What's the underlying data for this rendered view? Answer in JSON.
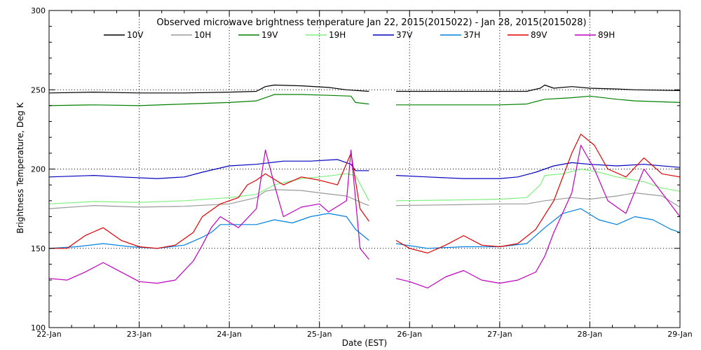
{
  "chart_data": {
    "type": "line",
    "title": "Observed microwave brightness temperature Jan 22, 2015(2015022) - Jan 28, 2015(2015028)",
    "xlabel": "Date (EST)",
    "ylabel": "Brightness Temperature, Deg K",
    "ylim": [
      100,
      300
    ],
    "xlim": [
      0,
      7
    ],
    "yticks": [
      100,
      150,
      200,
      250,
      300
    ],
    "xtick_labels": [
      "22-Jan",
      "23-Jan",
      "24-Jan",
      "25-Jan",
      "26-Jan",
      "27-Jan",
      "28-Jan",
      "29-Jan"
    ],
    "grid": "dotted",
    "gap": [
      3.55,
      3.85
    ],
    "series": [
      {
        "name": "10V",
        "color": "#000000",
        "points": [
          [
            0,
            248
          ],
          [
            0.5,
            248.5
          ],
          [
            1,
            248
          ],
          [
            1.5,
            248
          ],
          [
            2,
            248.5
          ],
          [
            2.3,
            249
          ],
          [
            2.4,
            252
          ],
          [
            2.5,
            253
          ],
          [
            2.8,
            252.5
          ],
          [
            3.1,
            251.5
          ],
          [
            3.3,
            250
          ],
          [
            3.55,
            249
          ],
          [
            3.85,
            249
          ],
          [
            4.5,
            249
          ],
          [
            5,
            249
          ],
          [
            5.3,
            249
          ],
          [
            5.45,
            251
          ],
          [
            5.5,
            253
          ],
          [
            5.6,
            251
          ],
          [
            5.8,
            252
          ],
          [
            6,
            251
          ],
          [
            6.3,
            250.5
          ],
          [
            6.5,
            250
          ],
          [
            7,
            249.5
          ]
        ]
      },
      {
        "name": "10H",
        "color": "#9a9a9a",
        "points": [
          [
            0,
            175
          ],
          [
            0.5,
            177
          ],
          [
            1,
            176
          ],
          [
            1.5,
            176.5
          ],
          [
            2,
            178
          ],
          [
            2.3,
            182
          ],
          [
            2.4,
            186
          ],
          [
            2.5,
            187
          ],
          [
            2.8,
            186.5
          ],
          [
            3,
            185
          ],
          [
            3.3,
            183
          ],
          [
            3.5,
            178
          ],
          [
            3.55,
            177
          ],
          [
            3.85,
            177
          ],
          [
            4.5,
            177.5
          ],
          [
            5,
            178
          ],
          [
            5.3,
            178
          ],
          [
            5.5,
            180
          ],
          [
            5.8,
            182
          ],
          [
            6,
            181
          ],
          [
            6.3,
            183
          ],
          [
            6.5,
            185
          ],
          [
            6.8,
            183
          ],
          [
            7,
            176
          ]
        ]
      },
      {
        "name": "19V",
        "color": "#008000",
        "points": [
          [
            0,
            240
          ],
          [
            0.5,
            240.5
          ],
          [
            1,
            240
          ],
          [
            1.5,
            241
          ],
          [
            2,
            242
          ],
          [
            2.3,
            243
          ],
          [
            2.4,
            245
          ],
          [
            2.5,
            247
          ],
          [
            2.8,
            247
          ],
          [
            3.1,
            246.5
          ],
          [
            3.35,
            246
          ],
          [
            3.4,
            242
          ],
          [
            3.55,
            241
          ],
          [
            3.85,
            240.5
          ],
          [
            4.5,
            240.5
          ],
          [
            5,
            240.5
          ],
          [
            5.3,
            241
          ],
          [
            5.5,
            244
          ],
          [
            5.8,
            245
          ],
          [
            6,
            246
          ],
          [
            6.3,
            244
          ],
          [
            6.5,
            243
          ],
          [
            7,
            242
          ]
        ]
      },
      {
        "name": "19H",
        "color": "#7fef7f",
        "points": [
          [
            0,
            178
          ],
          [
            0.5,
            179.5
          ],
          [
            1,
            179
          ],
          [
            1.5,
            180
          ],
          [
            2,
            182
          ],
          [
            2.3,
            184
          ],
          [
            2.5,
            190
          ],
          [
            2.8,
            194
          ],
          [
            3,
            195
          ],
          [
            3.3,
            197
          ],
          [
            3.4,
            196
          ],
          [
            3.55,
            180
          ],
          [
            3.85,
            180
          ],
          [
            4.5,
            180.5
          ],
          [
            5,
            181
          ],
          [
            5.3,
            182
          ],
          [
            5.45,
            190
          ],
          [
            5.5,
            196
          ],
          [
            5.7,
            197
          ],
          [
            5.9,
            200
          ],
          [
            6.1,
            198
          ],
          [
            6.3,
            195
          ],
          [
            6.6,
            192
          ],
          [
            6.8,
            188
          ],
          [
            7,
            186
          ]
        ]
      },
      {
        "name": "37V",
        "color": "#0000c0",
        "points": [
          [
            0,
            195
          ],
          [
            0.5,
            196
          ],
          [
            0.8,
            195
          ],
          [
            1.2,
            194
          ],
          [
            1.5,
            195
          ],
          [
            1.7,
            198
          ],
          [
            2,
            202
          ],
          [
            2.3,
            203
          ],
          [
            2.6,
            205
          ],
          [
            2.9,
            205
          ],
          [
            3.2,
            206
          ],
          [
            3.35,
            203
          ],
          [
            3.4,
            199
          ],
          [
            3.55,
            199
          ],
          [
            3.85,
            196
          ],
          [
            4.2,
            195
          ],
          [
            4.6,
            194
          ],
          [
            5,
            194
          ],
          [
            5.2,
            195
          ],
          [
            5.4,
            198
          ],
          [
            5.6,
            202
          ],
          [
            5.8,
            204
          ],
          [
            6,
            203
          ],
          [
            6.3,
            202
          ],
          [
            6.6,
            203
          ],
          [
            7,
            201
          ]
        ]
      },
      {
        "name": "37H",
        "color": "#0080e0",
        "points": [
          [
            0,
            150
          ],
          [
            0.3,
            151
          ],
          [
            0.6,
            153
          ],
          [
            0.9,
            151
          ],
          [
            1.2,
            150
          ],
          [
            1.5,
            152
          ],
          [
            1.7,
            157
          ],
          [
            1.8,
            160
          ],
          [
            1.9,
            165
          ],
          [
            2.1,
            165
          ],
          [
            2.3,
            165
          ],
          [
            2.5,
            168
          ],
          [
            2.7,
            166
          ],
          [
            2.9,
            170
          ],
          [
            3.1,
            172
          ],
          [
            3.3,
            170
          ],
          [
            3.4,
            162
          ],
          [
            3.55,
            155
          ],
          [
            3.85,
            153
          ],
          [
            4.2,
            150
          ],
          [
            4.6,
            151
          ],
          [
            5,
            151
          ],
          [
            5.3,
            153
          ],
          [
            5.5,
            163
          ],
          [
            5.7,
            172
          ],
          [
            5.9,
            175
          ],
          [
            6.1,
            168
          ],
          [
            6.3,
            165
          ],
          [
            6.5,
            170
          ],
          [
            6.7,
            168
          ],
          [
            6.9,
            162
          ],
          [
            7,
            160
          ]
        ]
      },
      {
        "name": "89V",
        "color": "#e00000",
        "points": [
          [
            0,
            150
          ],
          [
            0.2,
            150
          ],
          [
            0.4,
            158
          ],
          [
            0.6,
            163
          ],
          [
            0.8,
            155
          ],
          [
            1,
            151
          ],
          [
            1.2,
            150
          ],
          [
            1.4,
            152
          ],
          [
            1.6,
            160
          ],
          [
            1.7,
            170
          ],
          [
            1.9,
            178
          ],
          [
            2.1,
            182
          ],
          [
            2.2,
            190
          ],
          [
            2.3,
            193
          ],
          [
            2.4,
            197
          ],
          [
            2.6,
            190
          ],
          [
            2.8,
            195
          ],
          [
            3,
            193
          ],
          [
            3.2,
            190
          ],
          [
            3.35,
            210
          ],
          [
            3.45,
            175
          ],
          [
            3.55,
            167
          ],
          [
            3.85,
            155
          ],
          [
            4,
            150
          ],
          [
            4.2,
            147
          ],
          [
            4.4,
            152
          ],
          [
            4.6,
            158
          ],
          [
            4.8,
            152
          ],
          [
            5,
            151
          ],
          [
            5.2,
            153
          ],
          [
            5.4,
            162
          ],
          [
            5.6,
            180
          ],
          [
            5.8,
            210
          ],
          [
            5.9,
            222
          ],
          [
            6.05,
            215
          ],
          [
            6.2,
            200
          ],
          [
            6.4,
            195
          ],
          [
            6.6,
            207
          ],
          [
            6.8,
            197
          ],
          [
            7,
            195
          ]
        ]
      },
      {
        "name": "89H",
        "color": "#c000c0",
        "points": [
          [
            0,
            131
          ],
          [
            0.2,
            130
          ],
          [
            0.4,
            135
          ],
          [
            0.6,
            141
          ],
          [
            0.8,
            135
          ],
          [
            1,
            129
          ],
          [
            1.2,
            128
          ],
          [
            1.4,
            130
          ],
          [
            1.6,
            142
          ],
          [
            1.7,
            152
          ],
          [
            1.8,
            163
          ],
          [
            1.9,
            170
          ],
          [
            2.1,
            163
          ],
          [
            2.3,
            175
          ],
          [
            2.4,
            212
          ],
          [
            2.5,
            190
          ],
          [
            2.6,
            170
          ],
          [
            2.8,
            176
          ],
          [
            3,
            178
          ],
          [
            3.1,
            173
          ],
          [
            3.3,
            180
          ],
          [
            3.35,
            212
          ],
          [
            3.45,
            150
          ],
          [
            3.55,
            143
          ],
          [
            3.85,
            131
          ],
          [
            4,
            129
          ],
          [
            4.2,
            125
          ],
          [
            4.4,
            132
          ],
          [
            4.6,
            136
          ],
          [
            4.8,
            130
          ],
          [
            5,
            128
          ],
          [
            5.2,
            130
          ],
          [
            5.4,
            135
          ],
          [
            5.5,
            145
          ],
          [
            5.6,
            160
          ],
          [
            5.8,
            185
          ],
          [
            5.9,
            215
          ],
          [
            6.05,
            200
          ],
          [
            6.2,
            180
          ],
          [
            6.4,
            172
          ],
          [
            6.6,
            200
          ],
          [
            6.8,
            185
          ],
          [
            7,
            170
          ]
        ]
      }
    ]
  }
}
